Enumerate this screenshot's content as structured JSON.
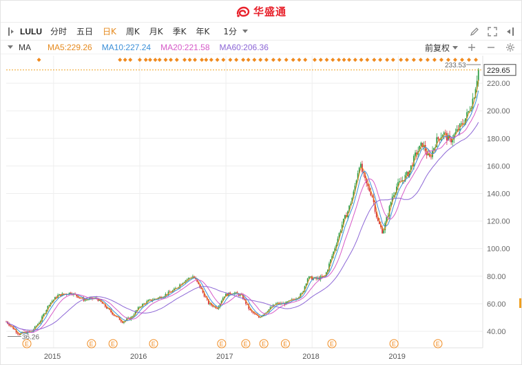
{
  "app": {
    "brand": "华盛通"
  },
  "toolbar": {
    "symbol": "LULU",
    "periods": [
      "分时",
      "五日",
      "日K",
      "周K",
      "月K",
      "季K",
      "年K"
    ],
    "active_period": "日K",
    "interval": "1分",
    "icons": [
      "pencil-icon",
      "fullscreen-icon",
      "collapse-right-icon"
    ]
  },
  "indicators": {
    "name": "MA",
    "ma5": "MA5:229.26",
    "ma10": "MA10:227.24",
    "ma20": "MA20:221.58",
    "ma60": "MA60:206.36",
    "adjust": "前复权",
    "icons": [
      "plus-icon",
      "minus-icon",
      "gear-icon"
    ],
    "colors": {
      "ma5": "#e68a1e",
      "ma10": "#3a8fd8",
      "ma20": "#d659c8",
      "ma60": "#8c66d6"
    }
  },
  "chart_data": {
    "type": "candlestick",
    "y_ticks": [
      "40.00",
      "60.00",
      "80.00",
      "100.00",
      "120.00",
      "140.00",
      "160.00",
      "180.00",
      "200.00",
      "220.00"
    ],
    "ylim": [
      35,
      240
    ],
    "x_ticks": [
      "2015",
      "2016",
      "2017",
      "2018",
      "2019"
    ],
    "x_tick_positions": [
      2015.0,
      2016.0,
      2017.0,
      2018.0,
      2019.0
    ],
    "xlim": [
      2014.45,
      2019.98
    ],
    "current_price": "229.65",
    "high_label": "233.53",
    "low_label": "36.26",
    "earnings_marker": "E",
    "earnings_dates": [
      2014.69,
      2015.44,
      2015.69,
      2016.16,
      2016.95,
      2017.23,
      2017.44,
      2017.69,
      2018.23,
      2018.95,
      2019.46
    ],
    "price_path": [
      [
        2014.45,
        47
      ],
      [
        2014.6,
        38
      ],
      [
        2014.75,
        40
      ],
      [
        2014.85,
        48
      ],
      [
        2014.95,
        60
      ],
      [
        2015.05,
        66
      ],
      [
        2015.2,
        68
      ],
      [
        2015.35,
        63
      ],
      [
        2015.5,
        64
      ],
      [
        2015.6,
        58
      ],
      [
        2015.7,
        52
      ],
      [
        2015.8,
        47
      ],
      [
        2015.9,
        50
      ],
      [
        2016.0,
        58
      ],
      [
        2016.1,
        62
      ],
      [
        2016.25,
        65
      ],
      [
        2016.4,
        70
      ],
      [
        2016.5,
        76
      ],
      [
        2016.62,
        80
      ],
      [
        2016.7,
        72
      ],
      [
        2016.8,
        60
      ],
      [
        2016.9,
        57
      ],
      [
        2016.98,
        66
      ],
      [
        2017.08,
        68
      ],
      [
        2017.18,
        66
      ],
      [
        2017.28,
        55
      ],
      [
        2017.38,
        50
      ],
      [
        2017.48,
        55
      ],
      [
        2017.58,
        60
      ],
      [
        2017.68,
        60
      ],
      [
        2017.78,
        63
      ],
      [
        2017.88,
        67
      ],
      [
        2017.95,
        79
      ],
      [
        2018.05,
        78
      ],
      [
        2018.15,
        80
      ],
      [
        2018.25,
        98
      ],
      [
        2018.35,
        118
      ],
      [
        2018.42,
        128
      ],
      [
        2018.48,
        140
      ],
      [
        2018.55,
        162
      ],
      [
        2018.62,
        148
      ],
      [
        2018.7,
        138
      ],
      [
        2018.76,
        120
      ],
      [
        2018.82,
        112
      ],
      [
        2018.88,
        125
      ],
      [
        2018.93,
        138
      ],
      [
        2018.98,
        145
      ],
      [
        2019.05,
        150
      ],
      [
        2019.12,
        155
      ],
      [
        2019.2,
        168
      ],
      [
        2019.28,
        176
      ],
      [
        2019.36,
        165
      ],
      [
        2019.44,
        178
      ],
      [
        2019.52,
        184
      ],
      [
        2019.6,
        178
      ],
      [
        2019.68,
        185
      ],
      [
        2019.76,
        192
      ],
      [
        2019.82,
        200
      ],
      [
        2019.88,
        212
      ],
      [
        2019.93,
        230
      ]
    ]
  }
}
